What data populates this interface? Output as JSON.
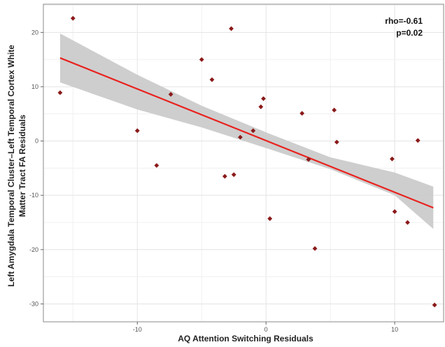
{
  "chart_data": {
    "type": "scatter",
    "title": "",
    "xlabel": "AQ Attention Switching Residuals",
    "ylabel_line1": "Left Amygdala Temporal Cluster–Left Temporal Cortex White",
    "ylabel_line2": "Matter Tract FA Residuals",
    "xlim": [
      -17.3,
      13.8
    ],
    "ylim": [
      -33.3,
      25.2
    ],
    "xticks": [
      -10,
      0,
      10
    ],
    "xtick_labels": [
      "-10",
      "0",
      "10"
    ],
    "yticks": [
      20,
      10,
      0,
      -10,
      -20,
      -30
    ],
    "ytick_labels": [
      "20",
      "10",
      "0",
      "-10",
      "-20",
      "-30"
    ],
    "grid": true,
    "annotations": {
      "rho": "rho=-0.61",
      "p": "p=0.02"
    },
    "regression": {
      "x": [
        -16.0,
        13.0
      ],
      "y": [
        15.3,
        -12.3
      ],
      "color": "#e8231f",
      "ci_color": "#c9c9c9",
      "ci_lower": [
        [
          -16,
          10.8
        ],
        [
          -10,
          5.8
        ],
        [
          -5,
          2.5
        ],
        [
          0,
          -1.3
        ],
        [
          5,
          -5.2
        ],
        [
          10,
          -10.0
        ],
        [
          13,
          -16.2
        ]
      ],
      "ci_upper": [
        [
          -16,
          19.8
        ],
        [
          -10,
          12.2
        ],
        [
          -5,
          6.5
        ],
        [
          0,
          1.6
        ],
        [
          5,
          -3.0
        ],
        [
          10,
          -5.8
        ],
        [
          13,
          -8.4
        ]
      ]
    },
    "point_color": "#8b1a1a",
    "points": [
      [
        -16.0,
        8.9
      ],
      [
        -15.0,
        22.6
      ],
      [
        -10.0,
        1.9
      ],
      [
        -8.5,
        -4.5
      ],
      [
        -7.4,
        8.6
      ],
      [
        -5.0,
        15.0
      ],
      [
        -4.2,
        11.3
      ],
      [
        -3.2,
        -6.5
      ],
      [
        -2.7,
        20.7
      ],
      [
        -2.5,
        -6.2
      ],
      [
        -2.0,
        0.7
      ],
      [
        -1.0,
        1.9
      ],
      [
        -0.4,
        6.3
      ],
      [
        -0.2,
        7.8
      ],
      [
        0.3,
        -14.3
      ],
      [
        2.8,
        5.1
      ],
      [
        3.3,
        -3.4
      ],
      [
        3.8,
        -19.8
      ],
      [
        5.3,
        5.7
      ],
      [
        5.5,
        -0.2
      ],
      [
        9.8,
        -3.3
      ],
      [
        10.0,
        -13.0
      ],
      [
        11.0,
        -15.0
      ],
      [
        11.8,
        0.1
      ],
      [
        13.1,
        -30.2
      ]
    ]
  }
}
